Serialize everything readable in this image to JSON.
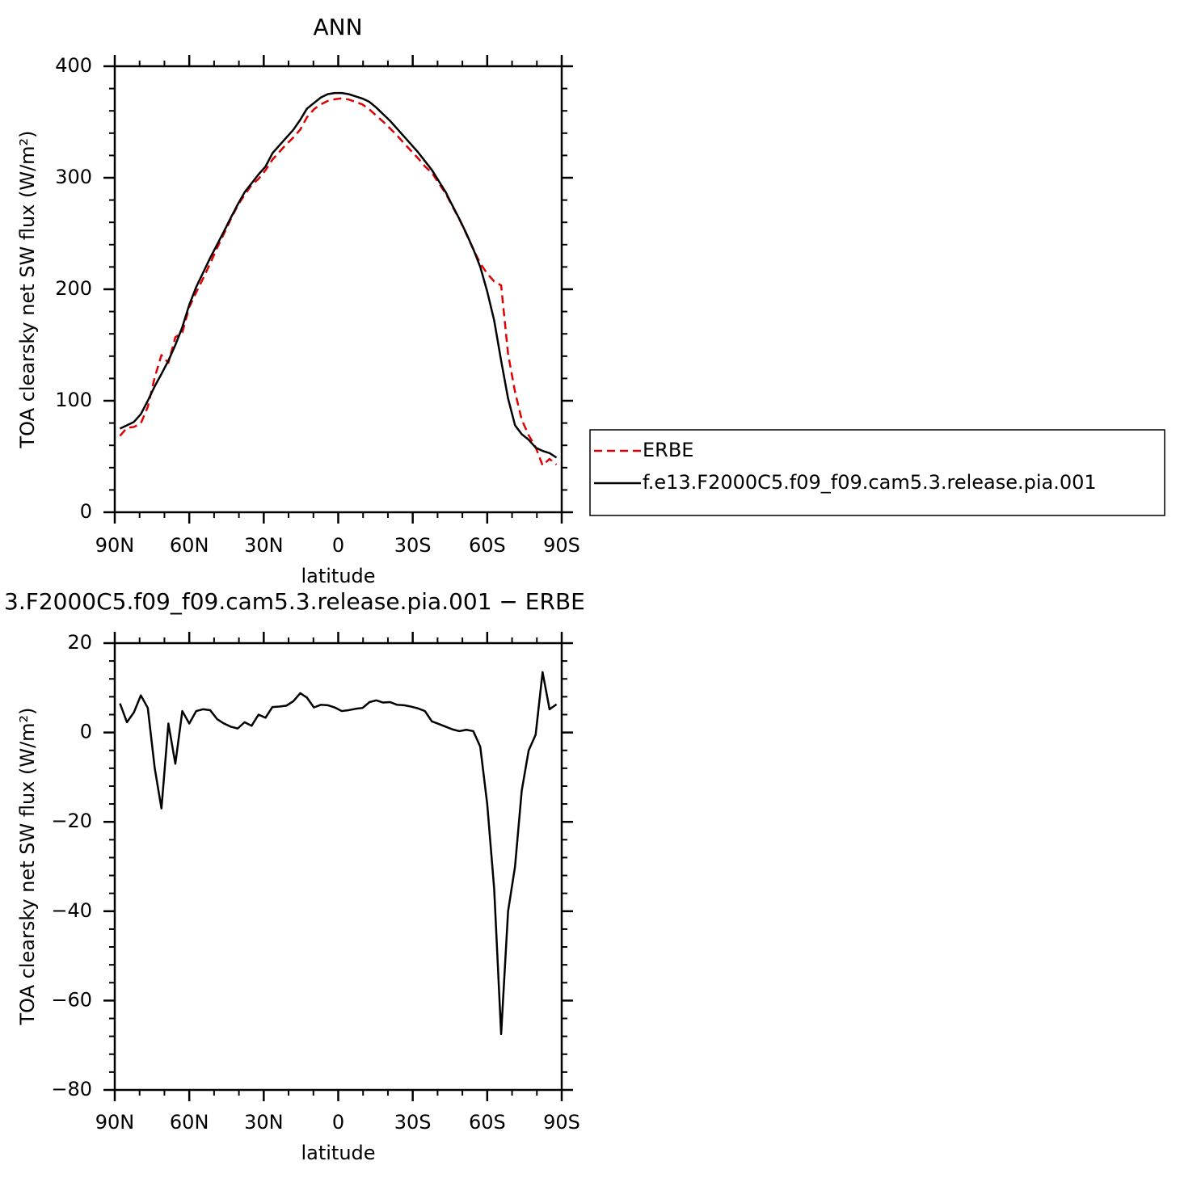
{
  "chart_data": [
    {
      "type": "line",
      "title": "ANN",
      "xlabel": "latitude",
      "ylabel": "TOA clearsky net SW flux (W/m²)",
      "x": [
        87.9,
        85.1,
        82.3,
        79.5,
        76.7,
        73.9,
        71.2,
        68.4,
        65.6,
        62.8,
        60.0,
        57.2,
        54.4,
        51.6,
        48.8,
        46.0,
        43.3,
        40.5,
        37.7,
        34.9,
        32.1,
        29.3,
        26.5,
        23.7,
        20.9,
        18.1,
        15.3,
        12.6,
        9.8,
        7.0,
        4.2,
        1.4,
        -1.4,
        -4.2,
        -7.0,
        -9.8,
        -12.6,
        -15.3,
        -18.1,
        -20.9,
        -23.7,
        -26.5,
        -29.3,
        -32.1,
        -34.9,
        -37.7,
        -40.5,
        -43.3,
        -46.0,
        -48.8,
        -51.6,
        -54.4,
        -57.2,
        -60.0,
        -62.8,
        -65.6,
        -68.4,
        -71.2,
        -73.9,
        -76.7,
        -79.5,
        -82.3,
        -85.1,
        -87.9
      ],
      "series": [
        {
          "name": "ERBE",
          "color": "#e00000",
          "line_style": "dashed",
          "values": [
            68.5,
            75.7,
            76.5,
            79.7,
            94.5,
            121,
            141,
            134,
            157,
            161.2,
            184,
            197.2,
            209.8,
            223,
            237,
            250,
            262.7,
            275.1,
            284.7,
            293.5,
            299,
            306.7,
            316.3,
            323.2,
            330,
            336,
            343.2,
            354.2,
            361.4,
            365.8,
            368.9,
            370.4,
            371.2,
            370.2,
            368,
            365.7,
            361.2,
            355.8,
            350.3,
            344.2,
            337.9,
            330.9,
            324.2,
            317.6,
            310.2,
            304.5,
            295.1,
            285.7,
            274.3,
            262.7,
            249.4,
            235.7,
            223.2,
            214,
            207,
            203.5,
            142,
            108,
            83,
            69,
            58.5,
            42,
            47.8,
            42.7
          ]
        },
        {
          "name": "f.e13.F2000C5.f09_f09.cam5.3.release.pia.001",
          "color": "#000000",
          "line_style": "solid",
          "values": [
            75,
            78,
            81,
            88,
            100,
            113,
            124,
            136,
            150,
            166,
            186,
            202,
            215,
            228,
            240,
            252,
            264,
            276,
            287,
            295,
            303,
            310,
            322,
            329,
            336,
            343,
            352,
            362,
            367,
            372,
            375,
            376,
            376,
            375,
            373,
            371,
            368,
            363,
            357,
            351,
            344,
            337,
            330,
            323,
            315,
            307,
            297,
            287,
            275,
            263,
            250,
            236,
            220,
            198,
            172,
            136,
            102,
            78,
            70,
            65,
            58,
            55,
            53,
            49
          ]
        }
      ],
      "xlim": [
        90,
        -90
      ],
      "xticks": [
        {
          "value": 90,
          "label": "90N"
        },
        {
          "value": 60,
          "label": "60N"
        },
        {
          "value": 30,
          "label": "30N"
        },
        0,
        {
          "value": -30,
          "label": "30S"
        },
        {
          "value": -60,
          "label": "60S"
        },
        {
          "value": -90,
          "label": "90S"
        }
      ],
      "ylim": [
        0,
        400
      ],
      "yticks": [
        0,
        100,
        200,
        300,
        400
      ],
      "legend": "right"
    },
    {
      "type": "line",
      "title": "3.F2000C5.f09_f09.cam5.3.release.pia.001 − ERBE",
      "xlabel": "latitude",
      "ylabel": "TOA clearsky net SW flux (W/m²)",
      "x": [
        87.9,
        85.1,
        82.3,
        79.5,
        76.7,
        73.9,
        71.2,
        68.4,
        65.6,
        62.8,
        60.0,
        57.2,
        54.4,
        51.6,
        48.8,
        46.0,
        43.3,
        40.5,
        37.7,
        34.9,
        32.1,
        29.3,
        26.5,
        23.7,
        20.9,
        18.1,
        15.3,
        12.6,
        9.8,
        7.0,
        4.2,
        1.4,
        -1.4,
        -4.2,
        -7.0,
        -9.8,
        -12.6,
        -15.3,
        -18.1,
        -20.9,
        -23.7,
        -26.5,
        -29.3,
        -32.1,
        -34.9,
        -37.7,
        -40.5,
        -43.3,
        -46.0,
        -48.8,
        -51.6,
        -54.4,
        -57.2,
        -60.0,
        -62.8,
        -65.6,
        -68.4,
        -71.2,
        -73.9,
        -76.7,
        -79.5,
        -82.3,
        -85.1,
        -87.9
      ],
      "series": [
        {
          "color": "#000000",
          "line_style": "solid",
          "values": [
            6.5,
            2.3,
            4.5,
            8.3,
            5.5,
            -8,
            -17,
            2,
            -7,
            4.8,
            2,
            4.8,
            5.2,
            5,
            3,
            2,
            1.3,
            0.9,
            2.3,
            1.5,
            4,
            3.3,
            5.7,
            5.8,
            6,
            7,
            8.8,
            7.8,
            5.6,
            6.2,
            6.1,
            5.6,
            4.8,
            5,
            5.3,
            5.5,
            6.8,
            7.2,
            6.7,
            6.8,
            6.2,
            6.1,
            5.8,
            5.4,
            4.8,
            2.5,
            1.9,
            1.3,
            0.7,
            0.3,
            0.6,
            0.3,
            -3.2,
            -16,
            -35,
            -67.5,
            -40,
            -30,
            -13,
            -4,
            -0.5,
            13.5,
            5.2,
            6.3
          ]
        }
      ],
      "xlim": [
        90,
        -90
      ],
      "xticks": [
        {
          "value": 90,
          "label": "90N"
        },
        {
          "value": 60,
          "label": "60N"
        },
        {
          "value": 30,
          "label": "30N"
        },
        0,
        {
          "value": -30,
          "label": "30S"
        },
        {
          "value": -60,
          "label": "60S"
        },
        {
          "value": -90,
          "label": "90S"
        }
      ],
      "ylim": [
        -80,
        20
      ],
      "yticks": [
        {
          "value": -80,
          "label": "−80"
        },
        {
          "value": -60,
          "label": "−60"
        },
        {
          "value": -40,
          "label": "−40"
        },
        {
          "value": -20,
          "label": "−20"
        },
        0,
        20
      ]
    }
  ]
}
